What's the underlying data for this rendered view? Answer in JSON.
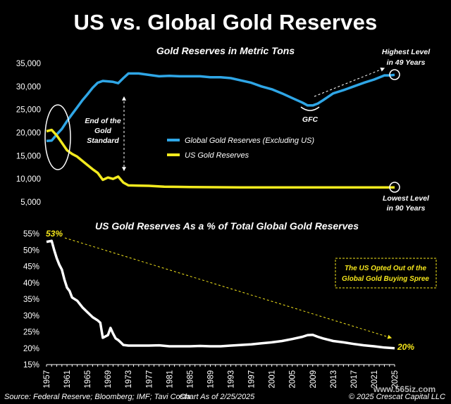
{
  "title": "US vs. Global Gold Reserves",
  "footer": {
    "source": "Source: Federal Reserve; Bloomberg; IMF; Tavi Costa",
    "chart_as_of": "Chart As of 2/25/2025",
    "copyright": "© 2025 Crescat Capital LLC",
    "watermark": "www.565iz.com"
  },
  "colors": {
    "global": "#2fa6e6",
    "us": "#f2ea1e",
    "ratio": "#ffffff",
    "annotation_yellow": "#f5e61c",
    "background": "#000000"
  },
  "chart_data": [
    {
      "type": "line",
      "title": "Gold Reserves in Metric Tons",
      "ylim": [
        5000,
        35000
      ],
      "yticks": [
        "5,000",
        "10,000",
        "15,000",
        "20,000",
        "25,000",
        "30,000",
        "35,000"
      ],
      "ytick_values": [
        5000,
        10000,
        15000,
        20000,
        25000,
        30000,
        35000
      ],
      "legend": [
        "Global Gold Reserves (Excluding US)",
        "US Gold Reserves"
      ],
      "annotations": {
        "end_of_gold": [
          "End of the",
          "Gold",
          "Standard"
        ],
        "gfc": "GFC",
        "highest": [
          "Highest Level",
          "in 49 Years"
        ],
        "lowest": [
          "Lowest Level",
          "in 90 Years"
        ]
      },
      "series": [
        {
          "name": "Global Gold Reserves (Excluding US)",
          "x": [
            1957,
            1958,
            1959,
            1960,
            1961,
            1962,
            1963,
            1964,
            1965,
            1966,
            1967,
            1968,
            1969,
            1970,
            1971,
            1972,
            1973,
            1975,
            1977,
            1979,
            1981,
            1983,
            1985,
            1987,
            1989,
            1991,
            1993,
            1995,
            1997,
            1999,
            2001,
            2003,
            2005,
            2007,
            2008,
            2009,
            2010,
            2011,
            2013,
            2015,
            2017,
            2019,
            2021,
            2023,
            2024,
            2025
          ],
          "y": [
            18200,
            18300,
            19600,
            20800,
            22500,
            24000,
            25500,
            27000,
            28300,
            29700,
            30800,
            31200,
            31100,
            31000,
            30700,
            31800,
            32800,
            32800,
            32500,
            32200,
            32300,
            32200,
            32200,
            32200,
            32000,
            32000,
            31800,
            31300,
            30800,
            30000,
            29400,
            28500,
            27500,
            26500,
            25900,
            25900,
            26300,
            27000,
            28500,
            29200,
            30000,
            30800,
            31500,
            32400,
            32400,
            32500
          ]
        },
        {
          "name": "US Gold Reserves",
          "x": [
            1957,
            1958,
            1959,
            1960,
            1961,
            1962,
            1963,
            1964,
            1965,
            1966,
            1967,
            1968,
            1969,
            1970,
            1971,
            1972,
            1973,
            1975,
            1977,
            1980,
            1985,
            1990,
            1995,
            2000,
            2005,
            2010,
            2015,
            2020,
            2025
          ],
          "y": [
            20300,
            20600,
            19400,
            17800,
            16200,
            15400,
            14800,
            13900,
            13000,
            12100,
            11300,
            9800,
            10300,
            10000,
            10500,
            9200,
            8600,
            8550,
            8500,
            8300,
            8250,
            8200,
            8150,
            8150,
            8150,
            8150,
            8150,
            8150,
            8150
          ]
        }
      ]
    },
    {
      "type": "line",
      "title": "US Gold Reserves As a % of Total Global Gold Reserves",
      "ylim": [
        15,
        55
      ],
      "yticks": [
        "15%",
        "20%",
        "25%",
        "30%",
        "35%",
        "40%",
        "45%",
        "50%",
        "55%"
      ],
      "ytick_values": [
        15,
        20,
        25,
        30,
        35,
        40,
        45,
        50,
        55
      ],
      "xticks": [
        "1957",
        "1961",
        "1965",
        "1969",
        "1973",
        "1977",
        "1981",
        "1985",
        "1989",
        "1993",
        "1997",
        "2001",
        "2005",
        "2009",
        "2013",
        "2017",
        "2021",
        "2025"
      ],
      "xtick_values": [
        1957,
        1961,
        1965,
        1969,
        1973,
        1977,
        1981,
        1985,
        1989,
        1993,
        1997,
        2001,
        2005,
        2009,
        2013,
        2017,
        2021,
        2025
      ],
      "xlim": [
        1957,
        2025
      ],
      "start_label": "53%",
      "end_label": "20%",
      "box_text": [
        "The US Opted Out of the",
        "Global Gold Buying Spree"
      ],
      "series": [
        {
          "name": "US share of global gold reserves",
          "x": [
            1957,
            1958,
            1958.5,
            1959,
            1959.5,
            1960,
            1960.5,
            1961,
            1961.5,
            1962,
            1963,
            1964,
            1965,
            1966,
            1967,
            1967.5,
            1968,
            1969,
            1969.5,
            1970,
            1970.5,
            1971,
            1971.5,
            1972,
            1973,
            1975,
            1977,
            1979,
            1981,
            1983,
            1985,
            1987,
            1989,
            1991,
            1993,
            1995,
            1997,
            1999,
            2001,
            2003,
            2005,
            2007,
            2008,
            2009,
            2010,
            2011,
            2013,
            2015,
            2017,
            2019,
            2021,
            2023,
            2025
          ],
          "y": [
            52.5,
            52.8,
            50,
            47.5,
            45.5,
            44,
            41,
            38.5,
            37.5,
            35.5,
            34.5,
            32.5,
            31,
            29.5,
            28.5,
            27.8,
            23.2,
            24,
            26.2,
            24.5,
            23,
            22.5,
            21.8,
            21,
            20.8,
            20.8,
            20.8,
            20.9,
            20.6,
            20.6,
            20.6,
            20.7,
            20.6,
            20.6,
            20.8,
            21,
            21.2,
            21.5,
            21.8,
            22.2,
            22.8,
            23.5,
            24,
            24.1,
            23.5,
            23,
            22.2,
            21.8,
            21.3,
            20.9,
            20.6,
            20.2,
            20
          ]
        }
      ]
    }
  ]
}
